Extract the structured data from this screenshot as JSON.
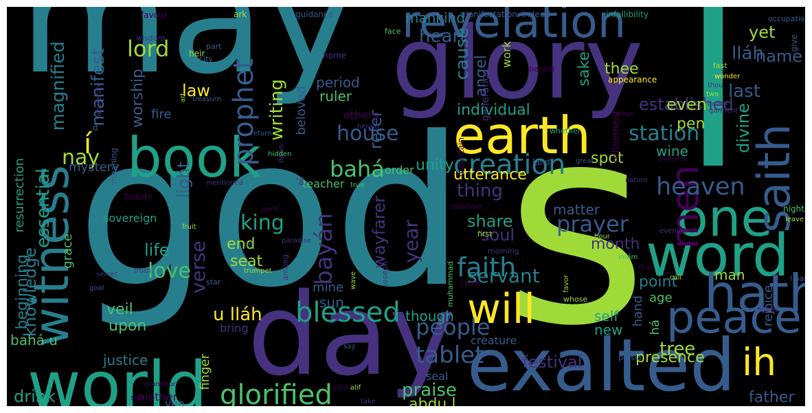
{
  "palette": [
    "#440154",
    "#46327e",
    "#365c8d",
    "#277f8e",
    "#1fa187",
    "#4ac16d",
    "#a0da39",
    "#fde725"
  ],
  "words": [
    {
      "text": "may",
      "color": "#277f8e"
    },
    {
      "text": "god",
      "color": "#277f8e"
    },
    {
      "text": "s",
      "color": "#a0da39"
    },
    {
      "text": "l",
      "color": "#1fa187"
    },
    {
      "text": "glory",
      "color": "#46327e"
    },
    {
      "text": "day",
      "color": "#46327e"
    },
    {
      "text": "exalted",
      "color": "#365c8d"
    },
    {
      "text": "world",
      "color": "#1fa187"
    },
    {
      "text": "earth",
      "color": "#fde725"
    },
    {
      "text": "book",
      "color": "#1fa187"
    },
    {
      "text": "revelation",
      "color": "#365c8d"
    },
    {
      "text": "word",
      "color": "#1fa187"
    },
    {
      "text": "one",
      "color": "#1fa187"
    },
    {
      "text": "hath",
      "color": "#365c8d"
    },
    {
      "text": "peace",
      "color": "#365c8d"
    },
    {
      "text": "will",
      "color": "#fde725"
    },
    {
      "text": "witness",
      "color": "#277f8e"
    },
    {
      "text": "saith",
      "color": "#365c8d"
    },
    {
      "text": "men",
      "color": "#440154"
    },
    {
      "text": "ih",
      "color": "#fde725"
    },
    {
      "text": "glorified",
      "color": "#4ac16d"
    },
    {
      "text": "creation",
      "color": "#277f8e"
    },
    {
      "text": "blessed",
      "color": "#1fa187"
    },
    {
      "text": "heaven",
      "color": "#365c8d"
    },
    {
      "text": "faith",
      "color": "#277f8e"
    },
    {
      "text": "tablet",
      "color": "#365c8d"
    },
    {
      "text": "people",
      "color": "#365c8d"
    },
    {
      "text": "station",
      "color": "#277f8e"
    },
    {
      "text": "house",
      "color": "#365c8d"
    },
    {
      "text": "prophet",
      "color": "#365c8d"
    },
    {
      "text": "prayer",
      "color": "#365c8d"
    },
    {
      "text": "bahá",
      "color": "#4ac16d"
    },
    {
      "text": "í",
      "color": "#fde725"
    },
    {
      "text": "nay",
      "color": "#a0da39"
    },
    {
      "text": "lord",
      "color": "#a0da39"
    },
    {
      "text": "king",
      "color": "#1fa187"
    },
    {
      "text": "love",
      "color": "#4ac16d"
    },
    {
      "text": "servant",
      "color": "#277f8e"
    },
    {
      "text": "bayán",
      "color": "#46327e"
    },
    {
      "text": "essential",
      "color": "#1fa187"
    },
    {
      "text": "knowledge",
      "color": "#277f8e"
    },
    {
      "text": "beginning",
      "color": "#277f8e"
    },
    {
      "text": "resurrection",
      "color": "#1fa187"
    },
    {
      "text": "manifest",
      "color": "#365c8d"
    },
    {
      "text": "magnified",
      "color": "#277f8e"
    },
    {
      "text": "worship",
      "color": "#365c8d"
    },
    {
      "text": "writing",
      "color": "#a0da39"
    },
    {
      "text": "law",
      "color": "#fde725"
    },
    {
      "text": "heart",
      "color": "#365c8d"
    },
    {
      "text": "mankind",
      "color": "#277f8e"
    },
    {
      "text": "period",
      "color": "#365c8d"
    },
    {
      "text": "ruler",
      "color": "#4ac16d"
    },
    {
      "text": "refer",
      "color": "#365c8d"
    },
    {
      "text": "cause",
      "color": "#277f8e"
    },
    {
      "text": "angel",
      "color": "#365c8d"
    },
    {
      "text": "individual",
      "color": "#1fa187"
    },
    {
      "text": "thing",
      "color": "#46327e"
    },
    {
      "text": "utterance",
      "color": "#fde725"
    },
    {
      "text": "share",
      "color": "#1fa187"
    },
    {
      "text": "soul",
      "color": "#46327e"
    },
    {
      "text": "year",
      "color": "#46327e"
    },
    {
      "text": "wayfarer",
      "color": "#46327e"
    },
    {
      "text": "unity",
      "color": "#1fa187"
    },
    {
      "text": "end",
      "color": "#a0da39"
    },
    {
      "text": "seat",
      "color": "#a0da39"
    },
    {
      "text": "life",
      "color": "#1fa187"
    },
    {
      "text": "light",
      "color": "#365c8d"
    },
    {
      "text": "veil",
      "color": "#4ac16d"
    },
    {
      "text": "upon",
      "color": "#4ac16d"
    },
    {
      "text": "verse",
      "color": "#46327e"
    },
    {
      "text": "u lláh",
      "color": "#fde725"
    },
    {
      "text": "sun",
      "color": "#365c8d"
    },
    {
      "text": "though",
      "color": "#1fa187"
    },
    {
      "text": "mine",
      "color": "#365c8d"
    },
    {
      "text": "praise",
      "color": "#4ac16d"
    },
    {
      "text": "abdu l",
      "color": "#a0da39"
    },
    {
      "text": "festival",
      "color": "#46327e"
    },
    {
      "text": "presence",
      "color": "#a0da39"
    },
    {
      "text": "tree",
      "color": "#a0da39"
    },
    {
      "text": "rejoice",
      "color": "#365c8d"
    },
    {
      "text": "father",
      "color": "#365c8d"
    },
    {
      "text": "man",
      "color": "#a0da39"
    },
    {
      "text": "point",
      "color": "#277f8e"
    },
    {
      "text": "age",
      "color": "#4ac16d"
    },
    {
      "text": "self",
      "color": "#1fa187"
    },
    {
      "text": "new",
      "color": "#1fa187"
    },
    {
      "text": "hand",
      "color": "#365c8d"
    },
    {
      "text": "há",
      "color": "#4ac16d"
    },
    {
      "text": "month",
      "color": "#46327e"
    },
    {
      "text": "matter",
      "color": "#365c8d"
    },
    {
      "text": "spot",
      "color": "#a0da39"
    },
    {
      "text": "wine",
      "color": "#1fa187"
    },
    {
      "text": "divine",
      "color": "#1fa187"
    },
    {
      "text": "established",
      "color": "#46327e"
    },
    {
      "text": "even",
      "color": "#a0da39"
    },
    {
      "text": "pen",
      "color": "#a0da39"
    },
    {
      "text": "thee",
      "color": "#a0da39"
    },
    {
      "text": "sake",
      "color": "#1fa187"
    },
    {
      "text": "last",
      "color": "#365c8d"
    },
    {
      "text": "lláh",
      "color": "#365c8d"
    },
    {
      "text": "name",
      "color": "#365c8d"
    },
    {
      "text": "yet",
      "color": "#a0da39"
    },
    {
      "text": "drink",
      "color": "#1fa187"
    },
    {
      "text": "bahá u",
      "color": "#4ac16d"
    },
    {
      "text": "justice",
      "color": "#277f8e"
    },
    {
      "text": "grace",
      "color": "#4ac16d"
    },
    {
      "text": "mystery",
      "color": "#365c8d"
    },
    {
      "text": "fire",
      "color": "#365c8d"
    },
    {
      "text": "beloved",
      "color": "#365c8d"
    },
    {
      "text": "others",
      "color": "#440154"
    },
    {
      "text": "order",
      "color": "#4ac16d"
    },
    {
      "text": "teacher",
      "color": "#4ac16d"
    },
    {
      "text": "sovereign",
      "color": "#1fa187"
    },
    {
      "text": "finger",
      "color": "#a0da39"
    },
    {
      "text": "bring",
      "color": "#46327e"
    },
    {
      "text": "yea",
      "color": "#365c8d"
    },
    {
      "text": "mother",
      "color": "#440154"
    },
    {
      "text": "seal",
      "color": "#365c8d"
    },
    {
      "text": "creature",
      "color": "#365c8d"
    },
    {
      "text": "work",
      "color": "#a0da39"
    },
    {
      "text": "generation",
      "color": "#46327e"
    },
    {
      "text": "refinement",
      "color": "#440154"
    },
    {
      "text": "favour",
      "color": "#440154"
    },
    {
      "text": "ark",
      "color": "#a0da39"
    },
    {
      "text": "guidance",
      "color": "#365c8d"
    },
    {
      "text": "manifestation",
      "color": "#365c8d"
    },
    {
      "text": "indeed",
      "color": "#365c8d"
    },
    {
      "text": "infallibility",
      "color": "#1fa187"
    },
    {
      "text": "occupation",
      "color": "#365c8d"
    },
    {
      "text": "give",
      "color": "#365c8d"
    },
    {
      "text": "wisdom",
      "color": "#46327e"
    },
    {
      "text": "heir",
      "color": "#a0da39"
    },
    {
      "text": "part",
      "color": "#365c8d"
    },
    {
      "text": "city",
      "color": "#365c8d"
    },
    {
      "text": "home",
      "color": "#46327e"
    },
    {
      "text": "face",
      "color": "#4ac16d"
    },
    {
      "text": "fast",
      "color": "#a0da39"
    },
    {
      "text": "wonder",
      "color": "#fde725"
    },
    {
      "text": "thou",
      "color": "#46327e"
    },
    {
      "text": "two",
      "color": "#a0da39"
    },
    {
      "text": "appearance",
      "color": "#fde725"
    },
    {
      "text": "behold",
      "color": "#440154"
    },
    {
      "text": "death",
      "color": "#46327e"
    },
    {
      "text": "garment",
      "color": "#46327e"
    },
    {
      "text": "arise",
      "color": "#440154"
    },
    {
      "text": "whether",
      "color": "#1fa187"
    },
    {
      "text": "great",
      "color": "#365c8d"
    },
    {
      "text": "nature",
      "color": "#46327e"
    },
    {
      "text": "poverty",
      "color": "#440154"
    },
    {
      "text": "land",
      "color": "#365c8d"
    },
    {
      "text": "mountain",
      "color": "#440154"
    },
    {
      "text": "observe",
      "color": "#440154"
    },
    {
      "text": "first",
      "color": "#a0da39"
    },
    {
      "text": "hour",
      "color": "#a0da39"
    },
    {
      "text": "morning",
      "color": "#46327e"
    },
    {
      "text": "evening",
      "color": "#46327e"
    },
    {
      "text": "imám",
      "color": "#4ac16d"
    },
    {
      "text": "fear",
      "color": "#440154"
    },
    {
      "text": "call",
      "color": "#a0da39"
    },
    {
      "text": "muhammad",
      "color": "#4ac16d"
    },
    {
      "text": "come",
      "color": "#440154"
    },
    {
      "text": "favor",
      "color": "#a0da39"
    },
    {
      "text": "whose",
      "color": "#a0da39"
    },
    {
      "text": "persia",
      "color": "#365c8d"
    },
    {
      "text": "night",
      "color": "#4ac16d"
    },
    {
      "text": "leave",
      "color": "#a0da39"
    },
    {
      "text": "lover",
      "color": "#46327e"
    },
    {
      "text": "l bahá",
      "color": "#365c8d"
    },
    {
      "text": "d",
      "color": "#365c8d"
    },
    {
      "text": "meaning",
      "color": "#365c8d"
    },
    {
      "text": "beauty",
      "color": "#440154"
    },
    {
      "text": "fruit",
      "color": "#a0da39"
    },
    {
      "text": "paradise",
      "color": "#46327e"
    },
    {
      "text": "truth",
      "color": "#46327e"
    },
    {
      "text": "secret",
      "color": "#46327e"
    },
    {
      "text": "goal",
      "color": "#365c8d"
    },
    {
      "text": "star",
      "color": "#365c8d"
    },
    {
      "text": "trumpet",
      "color": "#a0da39"
    },
    {
      "text": "among",
      "color": "#46327e"
    },
    {
      "text": "joseph",
      "color": "#46327e"
    },
    {
      "text": "spirit",
      "color": "#440154"
    },
    {
      "text": "return",
      "color": "#365c8d"
    },
    {
      "text": "dawn",
      "color": "#46327e"
    },
    {
      "text": "hidden",
      "color": "#4ac16d"
    },
    {
      "text": "herald",
      "color": "#46327e"
    },
    {
      "text": "mentioned",
      "color": "#46327e"
    },
    {
      "text": "let",
      "color": "#365c8d"
    },
    {
      "text": "wave",
      "color": "#a0da39"
    },
    {
      "text": "true",
      "color": "#4ac16d"
    },
    {
      "text": "grandeur",
      "color": "#440154"
    },
    {
      "text": "sign",
      "color": "#440154"
    },
    {
      "text": "say",
      "color": "#365c8d"
    },
    {
      "text": "verily",
      "color": "#440154"
    },
    {
      "text": "alif",
      "color": "#a0da39"
    },
    {
      "text": "take",
      "color": "#46327e"
    },
    {
      "text": "art",
      "color": "#a0da39"
    },
    {
      "text": "treasure",
      "color": "#365c8d"
    },
    {
      "text": "wherefore",
      "color": "#46327e"
    },
    {
      "text": "ʼá",
      "color": "#46327e"
    }
  ]
}
